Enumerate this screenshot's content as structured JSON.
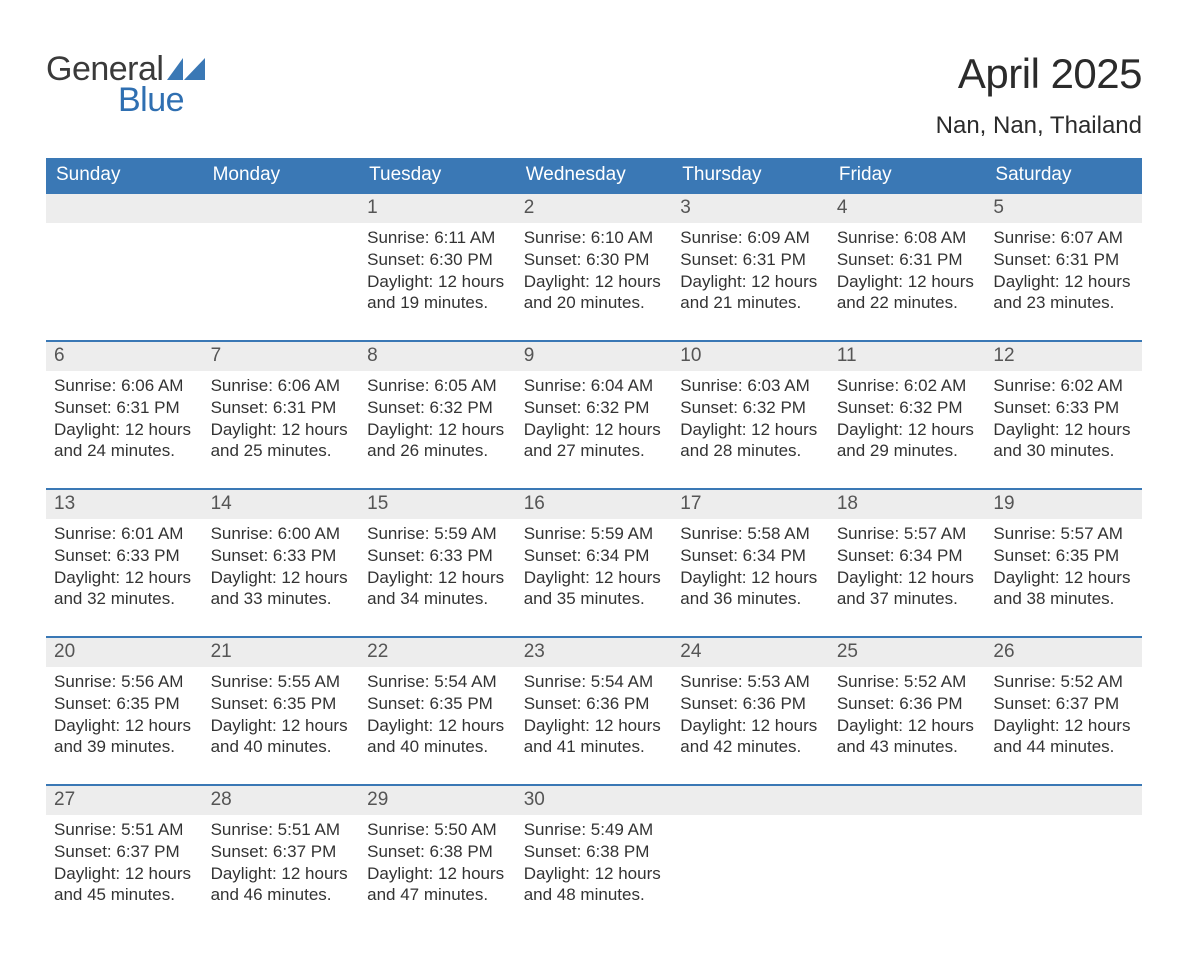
{
  "logo": {
    "word1": "General",
    "word2": "Blue",
    "text_color": "#3a3a3a",
    "accent_color": "#2f6fb1"
  },
  "title": "April 2025",
  "location": "Nan, Nan, Thailand",
  "colors": {
    "header_bg": "#3a78b5",
    "header_text": "#ffffff",
    "daynum_bg": "#ededed",
    "daynum_text": "#555555",
    "body_text": "#333333",
    "rule": "#3a78b5",
    "page_bg": "#ffffff"
  },
  "weekdays": [
    "Sunday",
    "Monday",
    "Tuesday",
    "Wednesday",
    "Thursday",
    "Friday",
    "Saturday"
  ],
  "weeks": [
    [
      null,
      null,
      {
        "n": "1",
        "sunrise": "Sunrise: 6:11 AM",
        "sunset": "Sunset: 6:30 PM",
        "day1": "Daylight: 12 hours",
        "day2": "and 19 minutes."
      },
      {
        "n": "2",
        "sunrise": "Sunrise: 6:10 AM",
        "sunset": "Sunset: 6:30 PM",
        "day1": "Daylight: 12 hours",
        "day2": "and 20 minutes."
      },
      {
        "n": "3",
        "sunrise": "Sunrise: 6:09 AM",
        "sunset": "Sunset: 6:31 PM",
        "day1": "Daylight: 12 hours",
        "day2": "and 21 minutes."
      },
      {
        "n": "4",
        "sunrise": "Sunrise: 6:08 AM",
        "sunset": "Sunset: 6:31 PM",
        "day1": "Daylight: 12 hours",
        "day2": "and 22 minutes."
      },
      {
        "n": "5",
        "sunrise": "Sunrise: 6:07 AM",
        "sunset": "Sunset: 6:31 PM",
        "day1": "Daylight: 12 hours",
        "day2": "and 23 minutes."
      }
    ],
    [
      {
        "n": "6",
        "sunrise": "Sunrise: 6:06 AM",
        "sunset": "Sunset: 6:31 PM",
        "day1": "Daylight: 12 hours",
        "day2": "and 24 minutes."
      },
      {
        "n": "7",
        "sunrise": "Sunrise: 6:06 AM",
        "sunset": "Sunset: 6:31 PM",
        "day1": "Daylight: 12 hours",
        "day2": "and 25 minutes."
      },
      {
        "n": "8",
        "sunrise": "Sunrise: 6:05 AM",
        "sunset": "Sunset: 6:32 PM",
        "day1": "Daylight: 12 hours",
        "day2": "and 26 minutes."
      },
      {
        "n": "9",
        "sunrise": "Sunrise: 6:04 AM",
        "sunset": "Sunset: 6:32 PM",
        "day1": "Daylight: 12 hours",
        "day2": "and 27 minutes."
      },
      {
        "n": "10",
        "sunrise": "Sunrise: 6:03 AM",
        "sunset": "Sunset: 6:32 PM",
        "day1": "Daylight: 12 hours",
        "day2": "and 28 minutes."
      },
      {
        "n": "11",
        "sunrise": "Sunrise: 6:02 AM",
        "sunset": "Sunset: 6:32 PM",
        "day1": "Daylight: 12 hours",
        "day2": "and 29 minutes."
      },
      {
        "n": "12",
        "sunrise": "Sunrise: 6:02 AM",
        "sunset": "Sunset: 6:33 PM",
        "day1": "Daylight: 12 hours",
        "day2": "and 30 minutes."
      }
    ],
    [
      {
        "n": "13",
        "sunrise": "Sunrise: 6:01 AM",
        "sunset": "Sunset: 6:33 PM",
        "day1": "Daylight: 12 hours",
        "day2": "and 32 minutes."
      },
      {
        "n": "14",
        "sunrise": "Sunrise: 6:00 AM",
        "sunset": "Sunset: 6:33 PM",
        "day1": "Daylight: 12 hours",
        "day2": "and 33 minutes."
      },
      {
        "n": "15",
        "sunrise": "Sunrise: 5:59 AM",
        "sunset": "Sunset: 6:33 PM",
        "day1": "Daylight: 12 hours",
        "day2": "and 34 minutes."
      },
      {
        "n": "16",
        "sunrise": "Sunrise: 5:59 AM",
        "sunset": "Sunset: 6:34 PM",
        "day1": "Daylight: 12 hours",
        "day2": "and 35 minutes."
      },
      {
        "n": "17",
        "sunrise": "Sunrise: 5:58 AM",
        "sunset": "Sunset: 6:34 PM",
        "day1": "Daylight: 12 hours",
        "day2": "and 36 minutes."
      },
      {
        "n": "18",
        "sunrise": "Sunrise: 5:57 AM",
        "sunset": "Sunset: 6:34 PM",
        "day1": "Daylight: 12 hours",
        "day2": "and 37 minutes."
      },
      {
        "n": "19",
        "sunrise": "Sunrise: 5:57 AM",
        "sunset": "Sunset: 6:35 PM",
        "day1": "Daylight: 12 hours",
        "day2": "and 38 minutes."
      }
    ],
    [
      {
        "n": "20",
        "sunrise": "Sunrise: 5:56 AM",
        "sunset": "Sunset: 6:35 PM",
        "day1": "Daylight: 12 hours",
        "day2": "and 39 minutes."
      },
      {
        "n": "21",
        "sunrise": "Sunrise: 5:55 AM",
        "sunset": "Sunset: 6:35 PM",
        "day1": "Daylight: 12 hours",
        "day2": "and 40 minutes."
      },
      {
        "n": "22",
        "sunrise": "Sunrise: 5:54 AM",
        "sunset": "Sunset: 6:35 PM",
        "day1": "Daylight: 12 hours",
        "day2": "and 40 minutes."
      },
      {
        "n": "23",
        "sunrise": "Sunrise: 5:54 AM",
        "sunset": "Sunset: 6:36 PM",
        "day1": "Daylight: 12 hours",
        "day2": "and 41 minutes."
      },
      {
        "n": "24",
        "sunrise": "Sunrise: 5:53 AM",
        "sunset": "Sunset: 6:36 PM",
        "day1": "Daylight: 12 hours",
        "day2": "and 42 minutes."
      },
      {
        "n": "25",
        "sunrise": "Sunrise: 5:52 AM",
        "sunset": "Sunset: 6:36 PM",
        "day1": "Daylight: 12 hours",
        "day2": "and 43 minutes."
      },
      {
        "n": "26",
        "sunrise": "Sunrise: 5:52 AM",
        "sunset": "Sunset: 6:37 PM",
        "day1": "Daylight: 12 hours",
        "day2": "and 44 minutes."
      }
    ],
    [
      {
        "n": "27",
        "sunrise": "Sunrise: 5:51 AM",
        "sunset": "Sunset: 6:37 PM",
        "day1": "Daylight: 12 hours",
        "day2": "and 45 minutes."
      },
      {
        "n": "28",
        "sunrise": "Sunrise: 5:51 AM",
        "sunset": "Sunset: 6:37 PM",
        "day1": "Daylight: 12 hours",
        "day2": "and 46 minutes."
      },
      {
        "n": "29",
        "sunrise": "Sunrise: 5:50 AM",
        "sunset": "Sunset: 6:38 PM",
        "day1": "Daylight: 12 hours",
        "day2": "and 47 minutes."
      },
      {
        "n": "30",
        "sunrise": "Sunrise: 5:49 AM",
        "sunset": "Sunset: 6:38 PM",
        "day1": "Daylight: 12 hours",
        "day2": "and 48 minutes."
      },
      null,
      null,
      null
    ]
  ]
}
